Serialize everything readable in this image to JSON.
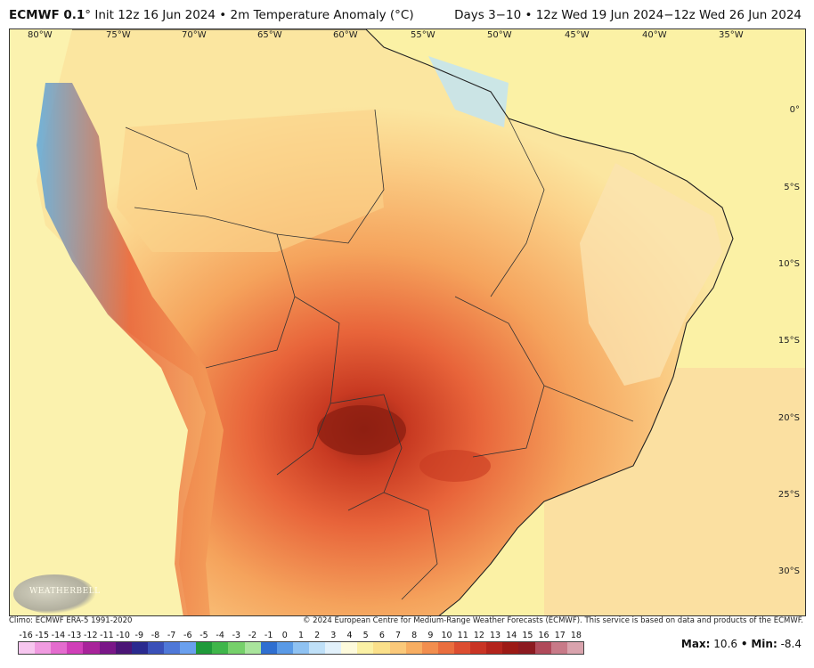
{
  "title": {
    "model": "ECMWF 0.1",
    "degree": "°",
    "init": "Init 12z 16 Jun 2024",
    "bullet": "•",
    "variable": "2m Temperature Anomaly (°C)",
    "range": "Days 3−10 • 12z Wed 19 Jun 2024−12z Wed 26 Jun 2024"
  },
  "map": {
    "lon_labels": [
      "80°W",
      "75°W",
      "70°W",
      "65°W",
      "60°W",
      "55°W",
      "50°W",
      "45°W",
      "40°W",
      "35°W"
    ],
    "lat_labels": [
      "0°",
      "5°S",
      "10°S",
      "15°S",
      "20°S",
      "25°S",
      "30°S"
    ],
    "logo_text": "WEATHERBELL",
    "colors": {
      "ocean_neutral": "#fbf1a5",
      "warm_light": "#fbd28a",
      "warm": "#f5a35c",
      "hot": "#e8643a",
      "very_hot": "#c83a22",
      "extreme": "#8e1f12",
      "cool": "#bfe3f6",
      "cold": "#5aa8e0"
    }
  },
  "footer": {
    "climo": "Climo: ECMWF ERA-5 1991-2020",
    "copyright": "© 2024 European Centre for Medium-Range Weather Forecasts (ECMWF). This service is based on data and products of the ECMWF."
  },
  "colorbar": {
    "ticks": [
      "-16",
      "-15",
      "-14",
      "-13",
      "-12",
      "-11",
      "-10",
      "-9",
      "-8",
      "-7",
      "-6",
      "-5",
      "-4",
      "-3",
      "-2",
      "-1",
      "0",
      "1",
      "2",
      "3",
      "4",
      "5",
      "6",
      "7",
      "8",
      "9",
      "10",
      "11",
      "12",
      "13",
      "14",
      "15",
      "16",
      "17",
      "18"
    ],
    "colors": [
      "#f7c6ef",
      "#f09be0",
      "#e46cce",
      "#d03fb8",
      "#a8239a",
      "#7a1788",
      "#4b1576",
      "#2a2a8f",
      "#3a50b8",
      "#4f78d8",
      "#6aa0ee",
      "#1f9a3a",
      "#3fb64a",
      "#76d06a",
      "#a9e49c",
      "#2f6fd0",
      "#5a9ae6",
      "#8fc2f2",
      "#bfe0f8",
      "#e2f1fb",
      "#fdfadc",
      "#fbf1a5",
      "#fbe08a",
      "#fbc97a",
      "#f8ae62",
      "#f28e4e",
      "#ea6e3e",
      "#dc4d30",
      "#c93424",
      "#b3241c",
      "#9c1a15",
      "#8c1a20",
      "#b04a5a",
      "#c87a88",
      "#d9a3ad"
    ],
    "ticks_swatch_note": ""
  },
  "stats": {
    "max_label": "Max:",
    "max_value": "10.6",
    "separator": "•",
    "min_label": "Min:",
    "min_value": "-8.4"
  }
}
